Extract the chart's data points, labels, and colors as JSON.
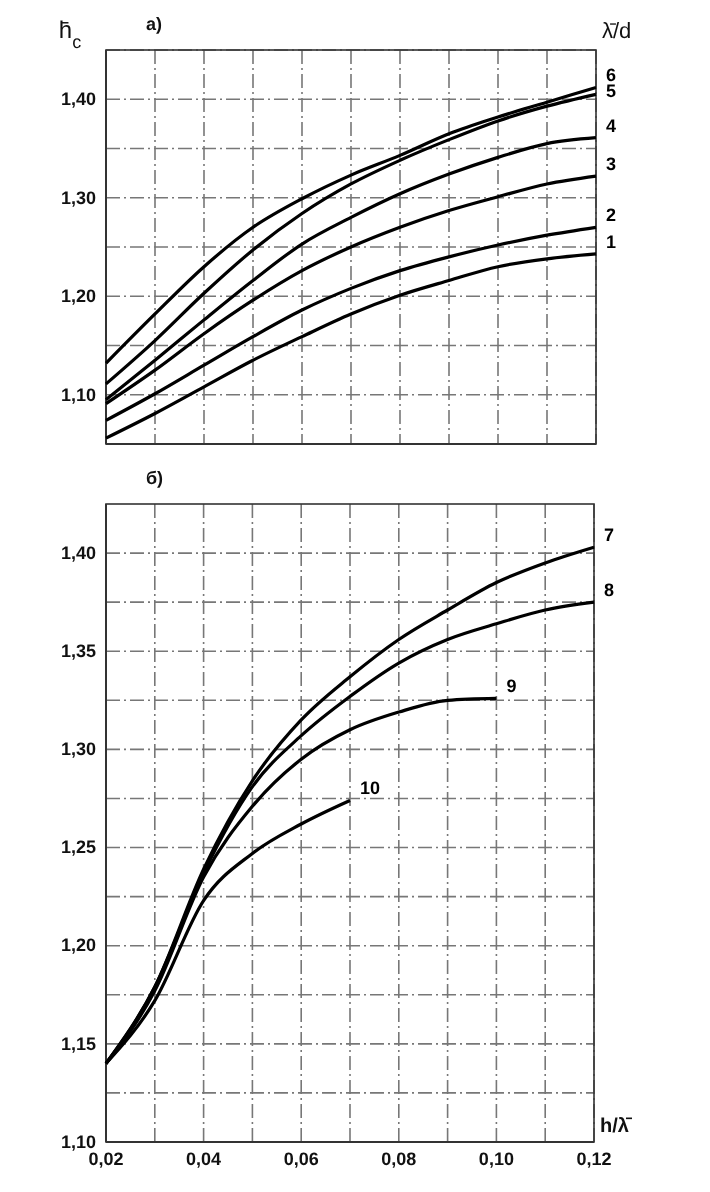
{
  "chart_data": [
    {
      "type": "line",
      "title": "а)",
      "ylabel": "h̄$_{c}$",
      "annotations": [
        "λ̄/d"
      ],
      "x": [
        0.02,
        0.03,
        0.04,
        0.05,
        0.06,
        0.07,
        0.08,
        0.09,
        0.1,
        0.11,
        0.12
      ],
      "xlim": [
        0.02,
        0.12
      ],
      "ylim": [
        1.05,
        1.45
      ],
      "xticks": [
        {
          "value": 0.02,
          "label": null
        },
        {
          "value": 0.03,
          "label": null
        },
        {
          "value": 0.04,
          "label": null
        },
        {
          "value": 0.05,
          "label": null
        },
        {
          "value": 0.06,
          "label": null
        },
        {
          "value": 0.07,
          "label": null
        },
        {
          "value": 0.08,
          "label": null
        },
        {
          "value": 0.09,
          "label": null
        },
        {
          "value": 0.1,
          "label": null
        },
        {
          "value": 0.11,
          "label": null
        },
        {
          "value": 0.12,
          "label": null
        }
      ],
      "yticks": [
        {
          "value": 1.05,
          "label": null
        },
        {
          "value": 1.1,
          "label": "1,10"
        },
        {
          "value": 1.15,
          "label": null
        },
        {
          "value": 1.2,
          "label": "1,20"
        },
        {
          "value": 1.25,
          "label": null
        },
        {
          "value": 1.3,
          "label": "1,30"
        },
        {
          "value": 1.35,
          "label": null
        },
        {
          "value": 1.4,
          "label": "1,40"
        },
        {
          "value": 1.45,
          "label": null
        }
      ],
      "tick_labels": "y",
      "grid": true,
      "marker": "none",
      "line_style": "solid",
      "series": [
        {
          "name": "6",
          "color": "#000000",
          "values": [
            1.132,
            1.182,
            1.23,
            1.27,
            1.299,
            1.323,
            1.343,
            1.365,
            1.382,
            1.397,
            1.412
          ]
        },
        {
          "name": "5",
          "color": "#000000",
          "values": [
            1.111,
            1.155,
            1.203,
            1.247,
            1.284,
            1.314,
            1.338,
            1.359,
            1.378,
            1.393,
            1.405
          ]
        },
        {
          "name": "4",
          "color": "#000000",
          "values": [
            1.095,
            1.135,
            1.176,
            1.216,
            1.253,
            1.28,
            1.304,
            1.324,
            1.341,
            1.355,
            1.361
          ]
        },
        {
          "name": "3",
          "color": "#000000",
          "values": [
            1.091,
            1.125,
            1.162,
            1.196,
            1.226,
            1.25,
            1.27,
            1.287,
            1.301,
            1.314,
            1.322
          ]
        },
        {
          "name": "2",
          "color": "#000000",
          "values": [
            1.074,
            1.101,
            1.13,
            1.159,
            1.186,
            1.208,
            1.226,
            1.24,
            1.252,
            1.262,
            1.27
          ]
        },
        {
          "name": "1",
          "color": "#000000",
          "values": [
            1.056,
            1.081,
            1.108,
            1.135,
            1.159,
            1.182,
            1.201,
            1.216,
            1.23,
            1.238,
            1.243
          ]
        }
      ]
    },
    {
      "type": "line",
      "title": "б)",
      "xlabel": "h/λ̄",
      "x": [
        0.02,
        0.03,
        0.04,
        0.05,
        0.06,
        0.07,
        0.08,
        0.09,
        0.1,
        0.11,
        0.12
      ],
      "xlim": [
        0.02,
        0.12
      ],
      "ylim": [
        1.1,
        1.425
      ],
      "xticks": [
        {
          "value": 0.02,
          "label": "0,02"
        },
        {
          "value": 0.03,
          "label": null
        },
        {
          "value": 0.04,
          "label": "0,04"
        },
        {
          "value": 0.05,
          "label": null
        },
        {
          "value": 0.06,
          "label": "0,06"
        },
        {
          "value": 0.07,
          "label": null
        },
        {
          "value": 0.08,
          "label": "0,08"
        },
        {
          "value": 0.09,
          "label": null
        },
        {
          "value": 0.1,
          "label": "0,10"
        },
        {
          "value": 0.11,
          "label": null
        },
        {
          "value": 0.12,
          "label": "0,12"
        }
      ],
      "yticks": [
        {
          "value": 1.1,
          "label": "1,10"
        },
        {
          "value": 1.125,
          "label": null
        },
        {
          "value": 1.15,
          "label": "1,15"
        },
        {
          "value": 1.175,
          "label": null
        },
        {
          "value": 1.2,
          "label": "1,20"
        },
        {
          "value": 1.225,
          "label": null
        },
        {
          "value": 1.25,
          "label": "1,25"
        },
        {
          "value": 1.275,
          "label": null
        },
        {
          "value": 1.3,
          "label": "1,30"
        },
        {
          "value": 1.325,
          "label": null
        },
        {
          "value": 1.35,
          "label": "1,35"
        },
        {
          "value": 1.375,
          "label": null
        },
        {
          "value": 1.4,
          "label": "1,40"
        }
      ],
      "grid": true,
      "marker": "none",
      "line_style": "solid",
      "series": [
        {
          "name": "7",
          "color": "#000000",
          "values": [
            1.14,
            1.179,
            1.239,
            1.284,
            1.315,
            1.337,
            1.356,
            1.371,
            1.385,
            1.395,
            1.403
          ]
        },
        {
          "name": "8",
          "color": "#000000",
          "values": [
            1.14,
            1.179,
            1.237,
            1.281,
            1.307,
            1.327,
            1.344,
            1.356,
            1.364,
            1.371,
            1.375
          ]
        },
        {
          "name": "9",
          "color": "#000000",
          "values": [
            1.14,
            1.177,
            1.235,
            1.271,
            1.295,
            1.31,
            1.319,
            1.325,
            1.326,
            null,
            null
          ]
        },
        {
          "name": "10",
          "color": "#000000",
          "values": [
            1.14,
            1.172,
            1.223,
            1.247,
            1.262,
            1.274,
            null,
            null,
            null,
            null,
            null
          ]
        }
      ]
    }
  ]
}
